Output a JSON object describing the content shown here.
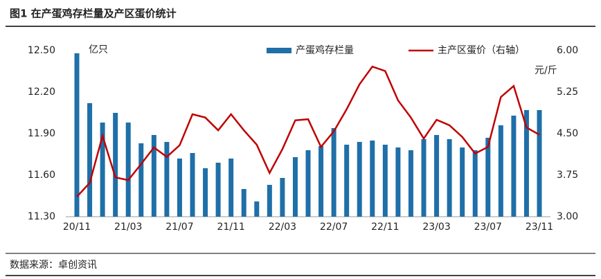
{
  "chart_data": {
    "type": "bar-line",
    "title": "图1 在产蛋鸡存栏量及产区蛋价统计",
    "y_unit": "亿只",
    "y2_unit": "元/斤",
    "source": "数据来源：卓创资讯",
    "categories": [
      "20/11",
      null,
      null,
      null,
      "21/03",
      null,
      null,
      null,
      "21/07",
      null,
      null,
      null,
      "21/11",
      null,
      null,
      null,
      "22/03",
      null,
      null,
      null,
      "22/07",
      null,
      null,
      null,
      "22/11",
      null,
      null,
      null,
      "23/03",
      null,
      null,
      null,
      "23/07",
      null,
      null,
      null,
      "23/11"
    ],
    "series": [
      {
        "name": "产蛋鸡存栏量",
        "type": "bar",
        "color": "#1f6fa8",
        "values": [
          12.48,
          12.12,
          11.98,
          12.05,
          11.98,
          11.83,
          11.89,
          11.84,
          11.72,
          11.76,
          11.65,
          11.69,
          11.72,
          11.5,
          11.41,
          11.53,
          11.58,
          11.73,
          11.78,
          11.81,
          11.94,
          11.82,
          11.84,
          11.85,
          11.82,
          11.8,
          11.78,
          11.86,
          11.89,
          11.86,
          11.8,
          11.78,
          11.87,
          11.96,
          12.03,
          12.07,
          12.07
        ]
      },
      {
        "name": "主产区蛋价（右轴）",
        "type": "line",
        "axis": "y2",
        "color": "#c00000",
        "values": [
          3.36,
          3.61,
          4.46,
          3.71,
          3.66,
          3.95,
          4.25,
          4.08,
          4.29,
          4.85,
          4.79,
          4.56,
          4.85,
          4.56,
          4.3,
          3.79,
          4.22,
          4.74,
          4.76,
          4.26,
          4.54,
          4.94,
          5.39,
          5.71,
          5.63,
          5.1,
          4.79,
          4.41,
          4.75,
          4.65,
          4.44,
          4.14,
          4.26,
          5.16,
          5.36,
          4.61,
          4.48
        ]
      }
    ],
    "ylim": [
      11.3,
      12.5
    ],
    "yticks": [
      {
        "value": 12.5,
        "label": "12.50"
      },
      {
        "value": 12.2,
        "label": "12.20"
      },
      {
        "value": 11.9,
        "label": "11.90"
      },
      {
        "value": 11.6,
        "label": "11.60"
      },
      {
        "value": 11.3,
        "label": "11.30"
      }
    ],
    "y2lim": [
      3,
      6
    ],
    "y2ticks": [
      {
        "value": 6,
        "label": "6.00"
      },
      5.25,
      {
        "value": 4.5,
        "label": "4.50"
      },
      3.75,
      {
        "value": 3,
        "label": "3.00"
      }
    ],
    "legend": "top",
    "grid": false
  }
}
